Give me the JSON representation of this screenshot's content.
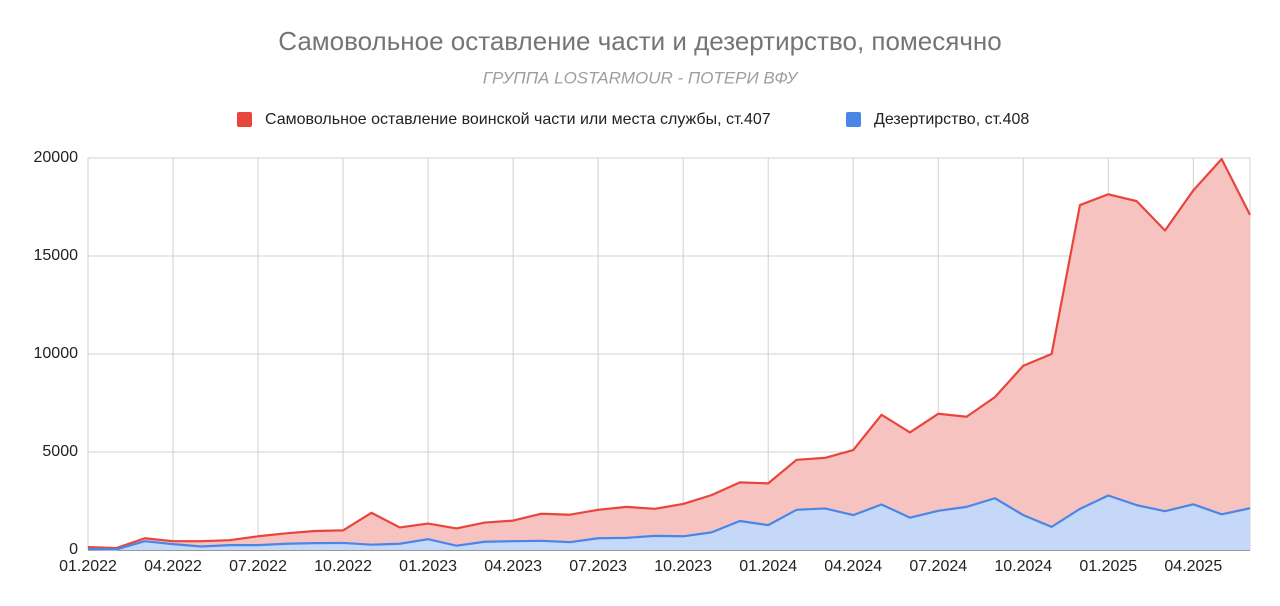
{
  "chart_data": {
    "type": "area",
    "title": "Самовольное оставление части и дезертирство, помесячно",
    "subtitle": "ГРУППА LOSTARMOUR - ПОТЕРИ ВФУ",
    "categories": [
      "01.2022",
      null,
      null,
      "04.2022",
      null,
      null,
      "07.2022",
      null,
      null,
      "10.2022",
      null,
      null,
      "01.2023",
      null,
      null,
      "04.2023",
      null,
      null,
      "07.2023",
      null,
      null,
      "10.2023",
      null,
      null,
      "01.2024",
      null,
      null,
      "04.2024",
      null,
      null,
      "07.2024",
      null,
      null,
      "10.2024",
      null,
      null,
      "01.2025",
      null,
      null,
      "04.2025",
      null,
      null
    ],
    "series": [
      {
        "name": "Самовольное оставление воинской части или места службы, ст.407",
        "color": "#e8453c",
        "values": [
          150,
          100,
          600,
          450,
          450,
          500,
          700,
          850,
          970,
          1000,
          1900,
          1150,
          1350,
          1100,
          1400,
          1500,
          1850,
          1800,
          2050,
          2200,
          2100,
          2350,
          2800,
          3450,
          3400,
          4600,
          4700,
          5100,
          6900,
          6000,
          6950,
          6800,
          7800,
          9400,
          10000,
          17600,
          18150,
          17800,
          16300,
          18350,
          19950,
          17100
        ]
      },
      {
        "name": "Дезертирство, ст.408",
        "color": "#4a86e8",
        "values": [
          50,
          30,
          450,
          300,
          180,
          250,
          250,
          320,
          350,
          360,
          270,
          320,
          550,
          220,
          420,
          450,
          470,
          400,
          600,
          620,
          720,
          700,
          900,
          1480,
          1270,
          2050,
          2120,
          1780,
          2320,
          1650,
          2000,
          2200,
          2640,
          1780,
          1180,
          2100,
          2780,
          2290,
          1980,
          2330,
          1820,
          2130
        ]
      }
    ],
    "ylim": [
      0,
      20000
    ],
    "yticks": [
      0,
      5000,
      10000,
      15000,
      20000
    ],
    "grid": true
  }
}
